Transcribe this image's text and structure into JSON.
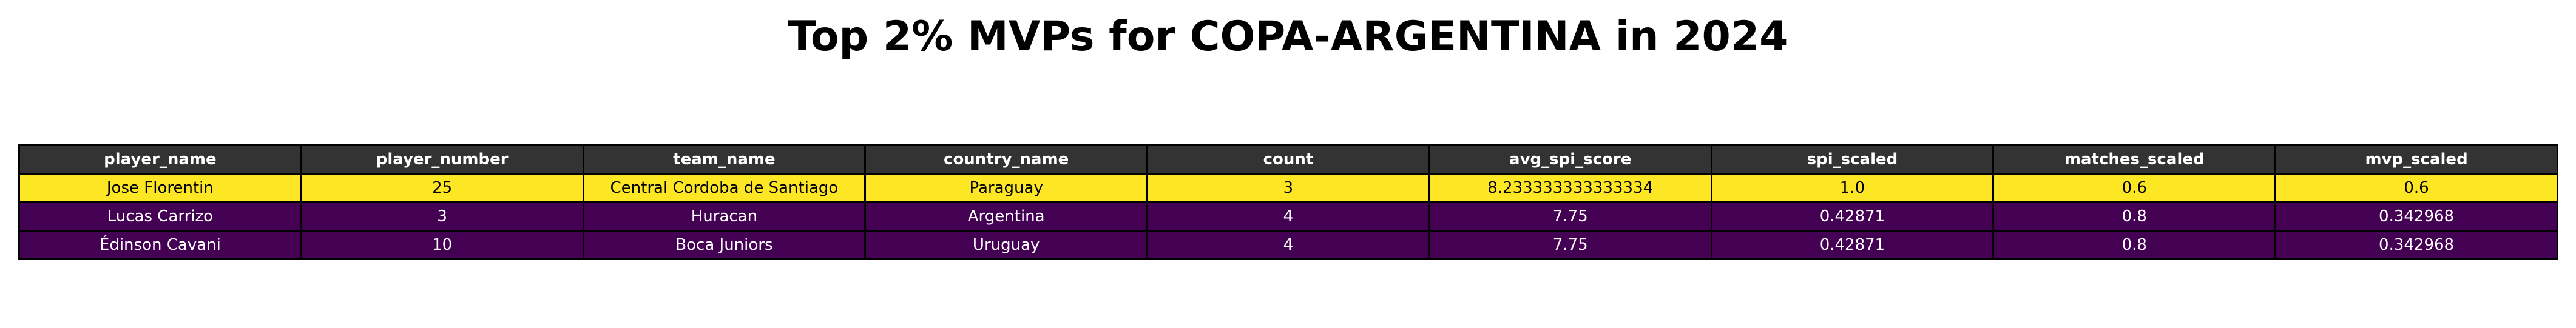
{
  "title": "Top 2% MVPs for COPA-ARGENTINA in 2024",
  "colors": {
    "header_background": "#333333",
    "header_text": "#ffffff",
    "highlight_row": "#fde725",
    "other_rows": "#440154",
    "grid_lines": "#000000"
  },
  "chart_data": {
    "type": "table",
    "title": "Top 2% MVPs for COPA-ARGENTINA in 2024",
    "columns": [
      "player_name",
      "player_number",
      "team_name",
      "country_name",
      "count",
      "avg_spi_score",
      "spi_scaled",
      "matches_scaled",
      "mvp_scaled"
    ],
    "rows": [
      {
        "cells": [
          "Jose Florentin",
          "25",
          "Central Cordoba de Santiago",
          "Paraguay",
          "3",
          "8.233333333333334",
          "1.0",
          "0.6",
          "0.6"
        ],
        "background": "#fde725",
        "text_color": "#000000"
      },
      {
        "cells": [
          "Lucas Carrizo",
          "3",
          "Huracan",
          "Argentina",
          "4",
          "7.75",
          "0.42871",
          "0.8",
          "0.342968"
        ],
        "background": "#440154",
        "text_color": "#ffffff"
      },
      {
        "cells": [
          "Édinson Cavani",
          "10",
          "Boca Juniors",
          "Uruguay",
          "4",
          "7.75",
          "0.42871",
          "0.8",
          "0.342968"
        ],
        "background": "#440154",
        "text_color": "#ffffff"
      }
    ]
  }
}
